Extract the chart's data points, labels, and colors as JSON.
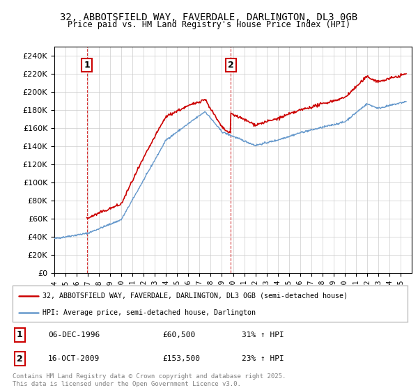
{
  "title1": "32, ABBOTSFIELD WAY, FAVERDALE, DARLINGTON, DL3 0GB",
  "title2": "Price paid vs. HM Land Registry's House Price Index (HPI)",
  "legend_line1": "32, ABBOTSFIELD WAY, FAVERDALE, DARLINGTON, DL3 0GB (semi-detached house)",
  "legend_line2": "HPI: Average price, semi-detached house, Darlington",
  "annotation1_date": "06-DEC-1996",
  "annotation1_price": "£60,500",
  "annotation1_hpi": "31% ↑ HPI",
  "annotation2_date": "16-OCT-2009",
  "annotation2_price": "£153,500",
  "annotation2_hpi": "23% ↑ HPI",
  "footer": "Contains HM Land Registry data © Crown copyright and database right 2025.\nThis data is licensed under the Open Government Licence v3.0.",
  "red_color": "#cc0000",
  "blue_color": "#6699cc",
  "background_color": "#ffffff",
  "grid_color": "#cccccc",
  "ylim_min": 0,
  "ylim_max": 250000,
  "year_start": 1994,
  "year_end": 2026,
  "trans1_year": 1996.917,
  "trans1_price": 60500,
  "trans2_year": 2009.792,
  "trans2_price": 153500
}
